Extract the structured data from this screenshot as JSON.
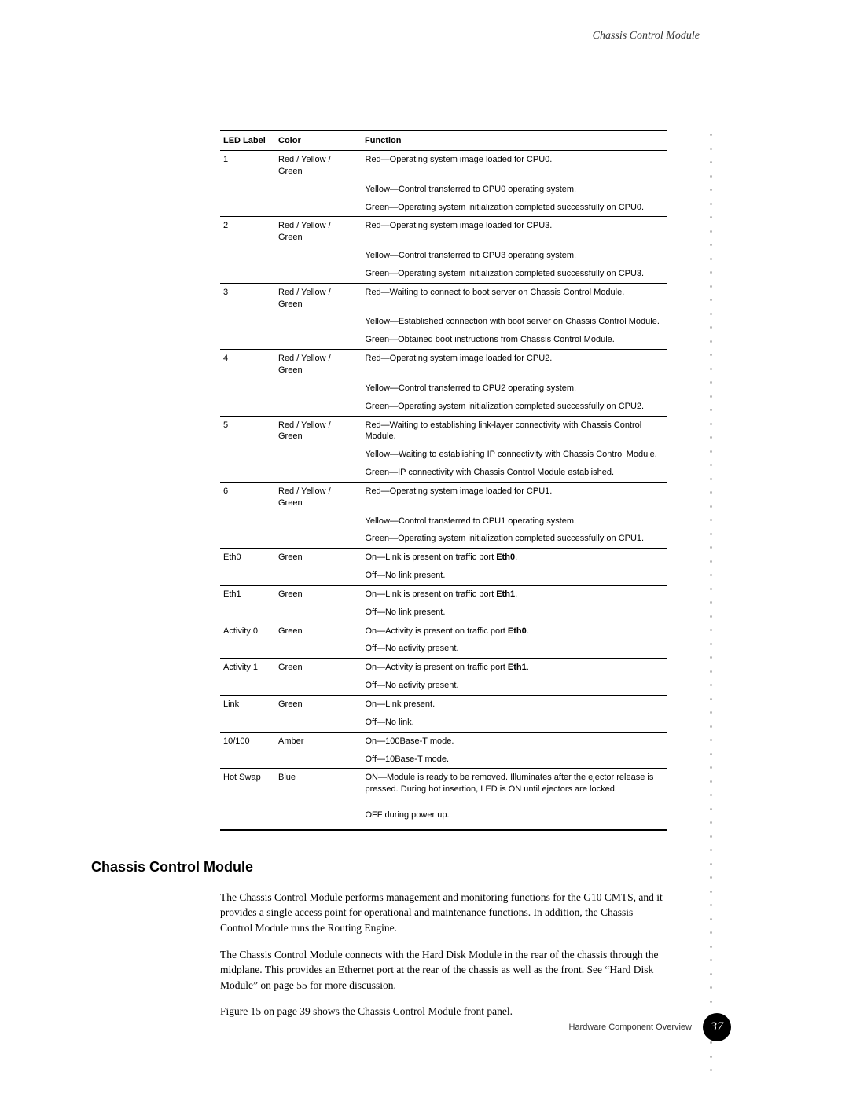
{
  "header": {
    "running_title": "Chassis Control Module"
  },
  "table": {
    "columns": [
      "LED Label",
      "Color",
      "Function"
    ],
    "groups": [
      {
        "label": "1",
        "color": "Red / Yellow / Green",
        "rows": [
          "Red—Operating system image loaded for CPU0.",
          "Yellow—Control transferred to CPU0 operating system.",
          "Green—Operating system initialization completed successfully on CPU0."
        ]
      },
      {
        "label": "2",
        "color": "Red / Yellow / Green",
        "rows": [
          "Red—Operating system image loaded for CPU3.",
          "Yellow—Control transferred to CPU3 operating system.",
          "Green—Operating system initialization completed successfully on CPU3."
        ]
      },
      {
        "label": "3",
        "color": "Red / Yellow / Green",
        "rows": [
          "Red—Waiting to connect to boot server on Chassis Control Module.",
          "Yellow—Established connection with boot server on Chassis Control Module.",
          "Green—Obtained boot instructions from Chassis Control Module."
        ]
      },
      {
        "label": "4",
        "color": "Red / Yellow / Green",
        "rows": [
          "Red—Operating system image loaded for CPU2.",
          "Yellow—Control transferred to CPU2 operating system.",
          "Green—Operating system initialization completed successfully on CPU2."
        ]
      },
      {
        "label": "5",
        "color": "Red / Yellow / Green",
        "rows": [
          "Red—Waiting to establishing link-layer connectivity with Chassis Control Module.",
          "Yellow—Waiting to establishing IP connectivity with Chassis Control Module.",
          "Green—IP connectivity with Chassis Control Module established."
        ]
      },
      {
        "label": "6",
        "color": "Red / Yellow / Green",
        "rows": [
          "Red—Operating system image loaded for CPU1.",
          "Yellow—Control transferred to CPU1 operating system.",
          "Green—Operating system initialization completed successfully on CPU1."
        ]
      },
      {
        "label": "Eth0",
        "color": "Green",
        "rows": [
          {
            "prefix": "On—Link is present on traffic port ",
            "bold": "Eth0",
            "suffix": "."
          },
          "Off—No link present."
        ]
      },
      {
        "label": "Eth1",
        "color": "Green",
        "rows": [
          {
            "prefix": "On—Link is present on traffic port ",
            "bold": "Eth1",
            "suffix": "."
          },
          "Off—No link present."
        ]
      },
      {
        "label": "Activity 0",
        "color": "Green",
        "rows": [
          {
            "prefix": "On—Activity is present on traffic port ",
            "bold": "Eth0",
            "suffix": "."
          },
          "Off—No activity present."
        ]
      },
      {
        "label": "Activity 1",
        "color": "Green",
        "rows": [
          {
            "prefix": "On—Activity is present on traffic port ",
            "bold": "Eth1",
            "suffix": "."
          },
          "Off—No activity present."
        ]
      },
      {
        "label": "Link",
        "color": "Green",
        "rows": [
          "On—Link present.",
          "Off—No link."
        ]
      },
      {
        "label": "10/100",
        "color": "Amber",
        "rows": [
          "On—100Base-T mode.",
          "Off—10Base-T mode."
        ]
      },
      {
        "label": "Hot Swap",
        "color": "Blue",
        "rows": [
          "ON—Module is ready to be removed. Illuminates after the ejector release is pressed. During hot insertion, LED is ON until ejectors are locked.",
          "OFF during power up."
        ],
        "last_row_spacing": true
      }
    ]
  },
  "section": {
    "heading": "Chassis Control Module",
    "paragraphs": [
      "The Chassis Control Module performs management and monitoring functions for the G10 CMTS, and it provides a single access point for operational and maintenance functions. In addition, the Chassis Control Module runs the Routing Engine.",
      "The Chassis Control Module connects with the Hard Disk Module in the rear of the chassis through the midplane. This provides an Ethernet port at the rear of the chassis as well as the front. See “Hard Disk Module” on page 55 for more discussion.",
      "Figure 15 on page 39 shows the Chassis Control Module front panel."
    ]
  },
  "footer": {
    "label": "Hardware Component Overview",
    "page": "37"
  },
  "style": {
    "dot_count": 69,
    "dot_color": "#b8b8b8"
  }
}
